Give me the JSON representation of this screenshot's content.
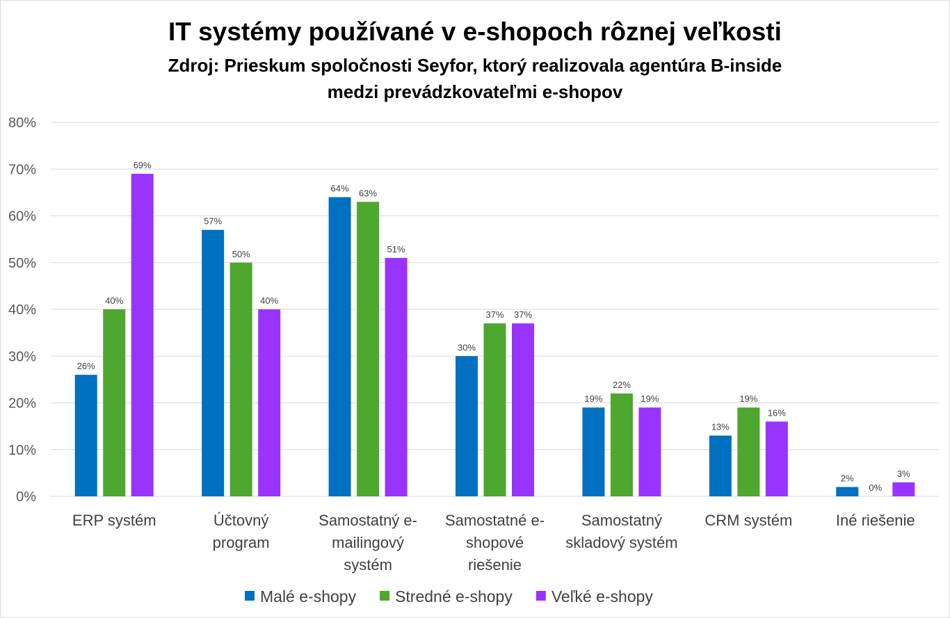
{
  "chart_data": {
    "type": "bar",
    "title": "IT systémy používané v e-shopoch rôznej veľkosti",
    "subtitle_lines": [
      "Zdroj: Prieskum spoločnosti Seyfor, ktorý realizovala agentúra B-inside",
      "medzi prevádzkovateľmi e-shopov"
    ],
    "categories": [
      [
        "ERP systém"
      ],
      [
        "Účtovný",
        "program"
      ],
      [
        "Samostatný e-",
        "mailingový",
        "systém"
      ],
      [
        "Samostatné e-",
        "shopové",
        "riešenie"
      ],
      [
        "Samostatný",
        "skladový systém"
      ],
      [
        "CRM systém"
      ],
      [
        "Iné riešenie"
      ]
    ],
    "series": [
      {
        "name": "Malé e-shopy",
        "color": "#0070C0",
        "values": [
          26,
          57,
          64,
          30,
          19,
          13,
          2
        ]
      },
      {
        "name": "Stredné e-shopy",
        "color": "#4EA72E",
        "values": [
          40,
          50,
          63,
          37,
          22,
          19,
          0
        ]
      },
      {
        "name": "Veľké e-shopy",
        "color": "#9933FF",
        "values": [
          69,
          40,
          51,
          37,
          19,
          16,
          3
        ]
      }
    ],
    "ylim": [
      0,
      80
    ],
    "yticks": [
      0,
      10,
      20,
      30,
      40,
      50,
      60,
      70,
      80
    ],
    "value_suffix": "%",
    "grid": true,
    "legend": "bottom"
  }
}
